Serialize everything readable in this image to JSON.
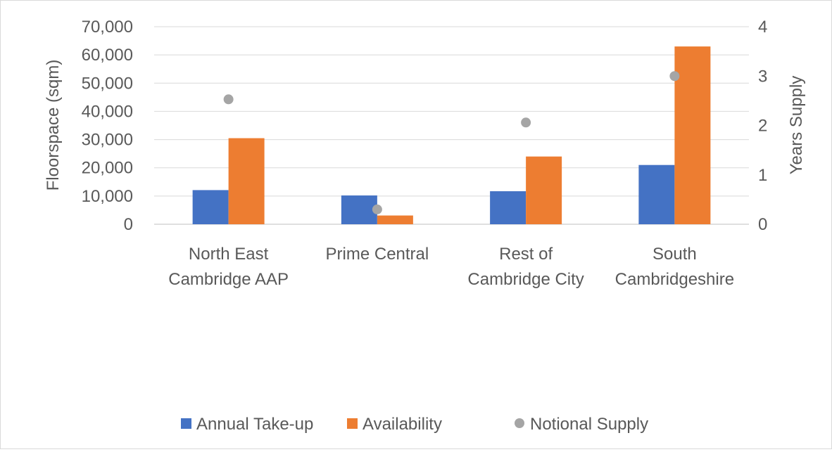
{
  "chart_data": {
    "type": "bar",
    "categories": [
      [
        "North East",
        "Cambridge AAP"
      ],
      [
        "Prime Central"
      ],
      [
        "Rest of",
        "Cambridge City"
      ],
      [
        "South",
        "Cambridgeshire"
      ]
    ],
    "series": [
      {
        "name": "Annual Take-up",
        "axis": "left",
        "kind": "bar",
        "color": "#4472C4",
        "values": [
          12100,
          10200,
          11700,
          21000
        ]
      },
      {
        "name": "Availability",
        "axis": "left",
        "kind": "bar",
        "color": "#ED7D31",
        "values": [
          30500,
          3100,
          24000,
          63000
        ]
      },
      {
        "name": "Notional Supply",
        "axis": "right",
        "kind": "marker",
        "color": "#A5A5A5",
        "values": [
          2.53,
          0.3,
          2.06,
          3.0
        ]
      }
    ],
    "ylabel": "Floorspace (sqm)",
    "y2label": "Years Supply",
    "ylim": [
      0,
      70000
    ],
    "y2lim": [
      0,
      4
    ],
    "yticks": [
      "0",
      "10,000",
      "20,000",
      "30,000",
      "40,000",
      "50,000",
      "60,000",
      "70,000"
    ],
    "y2ticks": [
      "0",
      "1",
      "2",
      "3",
      "4"
    ],
    "grid": true,
    "legend": "bottom"
  }
}
